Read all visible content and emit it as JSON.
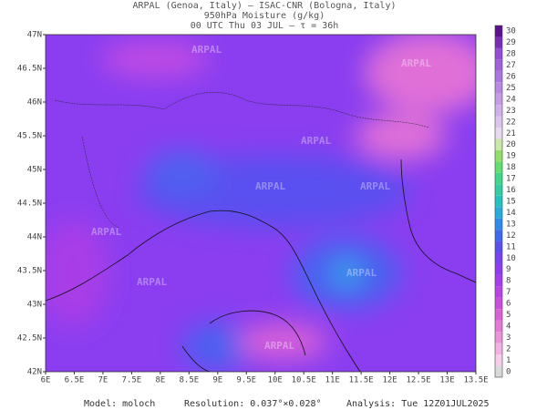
{
  "header": {
    "line1": "ARPAL (Genoa, Italy)  –  ISAC-CNR (Bologna, Italy)",
    "line2": "950hPa Moisture (g/kg)",
    "line3": "00 UTC Thu 03 JUL  –  τ = 36h"
  },
  "map": {
    "lon_labels": [
      "6E",
      "6.5E",
      "7E",
      "7.5E",
      "8E",
      "8.5E",
      "9E",
      "9.5E",
      "10E",
      "10.5E",
      "11E",
      "11.5E",
      "12E",
      "12.5E",
      "13E",
      "13.5E"
    ],
    "lat_labels": [
      "47N",
      "46.5N",
      "46N",
      "45.5N",
      "45N",
      "44.5N",
      "44N",
      "43.5N",
      "43N",
      "42.5N",
      "42N"
    ],
    "watermark": "ARPAL"
  },
  "colorbar": {
    "labels": [
      0,
      1,
      2,
      3,
      4,
      5,
      6,
      7,
      8,
      9,
      10,
      11,
      12,
      13,
      14,
      15,
      16,
      17,
      18,
      19,
      20,
      21,
      22,
      23,
      24,
      25,
      26,
      27,
      28,
      29,
      30
    ],
    "colors": [
      "#d9d9d9",
      "#f6cdea",
      "#f2b0e3",
      "#ec92db",
      "#e477d8",
      "#da5fd8",
      "#cc4cdf",
      "#bb42e8",
      "#a63bef",
      "#8e3bf2",
      "#7642f2",
      "#5a50f0",
      "#3f68f0",
      "#2e8cf0",
      "#25acdf",
      "#22c4c2",
      "#2ecfa3",
      "#3fd88a",
      "#5fdf6e",
      "#8fe06a",
      "#c8e8a8",
      "#e8d8f0",
      "#dcc4ee",
      "#d0b0ec",
      "#c49ce8",
      "#b888e4",
      "#ac74e0",
      "#a060dc",
      "#944cd8",
      "#7a2cb8",
      "#5a1090"
    ]
  },
  "footer": {
    "model": "Model: moloch",
    "resolution": "Resolution: 0.037°×0.028°",
    "analysis": "Analysis: Tue 12Z01JUL2025"
  }
}
